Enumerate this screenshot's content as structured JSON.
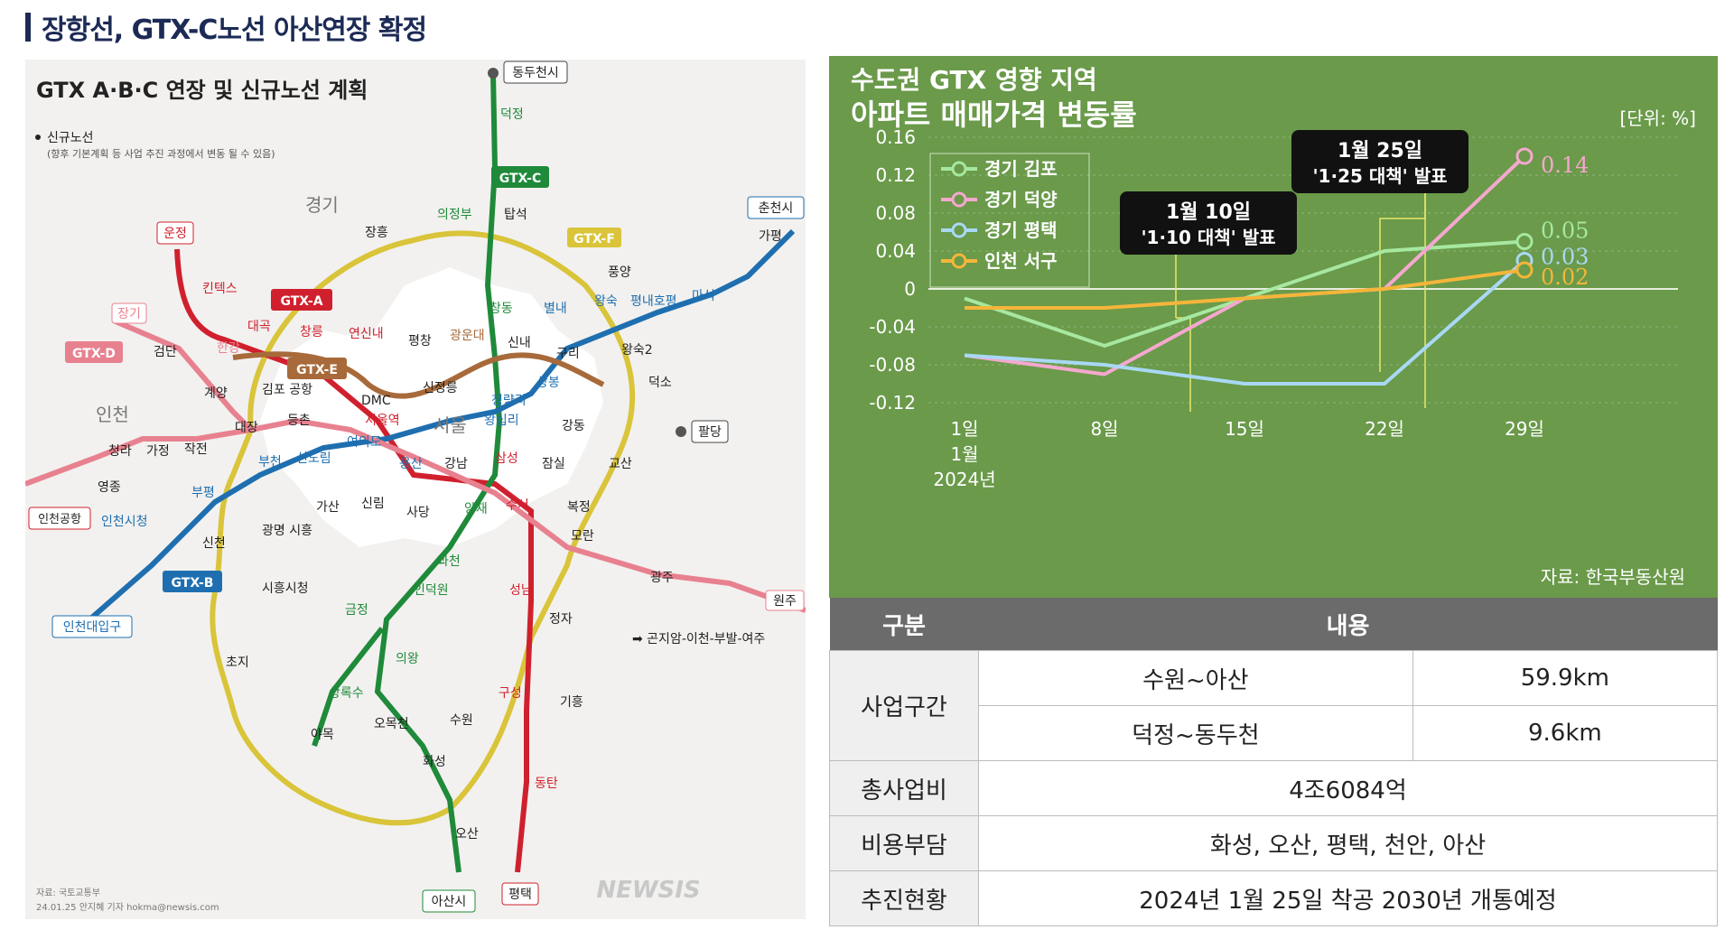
{
  "page_title": "장항선, GTX-C노선 아산연장 확정",
  "map": {
    "title": "GTX A·B·C 연장 및 신규노선 계획",
    "legend_label": "신규노선",
    "legend_note": "(향후 기본계획 등 사업 추진 과정에서 변동 될 수 있음)",
    "regions": [
      "경기",
      "인천",
      "서울"
    ],
    "line_labels": [
      "GTX-A",
      "GTX-B",
      "GTX-C",
      "GTX-D",
      "GTX-E",
      "GTX-F"
    ],
    "stations": {
      "dongducheon": "동두천시",
      "deokjeong": "덕정",
      "uijeongbu": "의정부",
      "tapseok": "탑석",
      "janghung": "장흥",
      "chuncheon": "춘천시",
      "gapyeong": "가평",
      "pungyang": "풍양",
      "unjeong": "운정",
      "kintex": "킨텍스",
      "janggi": "장기",
      "daegok": "대곡",
      "changreung": "창릉",
      "geomdan": "검단",
      "hangang": "한강",
      "gyeyang": "계양",
      "gimpo_airport": "김포\n공항",
      "daejang": "대장",
      "cheongna": "청라",
      "gajeong": "가정",
      "jakjeon": "작전",
      "yeongjong": "영종",
      "incheon_airport": "인천공항",
      "incheon_city_hall": "인천시청",
      "bupyeong": "부평",
      "bucheon": "부천",
      "sindorim": "신도림",
      "yeouido": "여의도",
      "yongsan": "용산",
      "seoul_station": "서울역",
      "deungchon": "등촌",
      "dmc": "DMC",
      "yeonsinnae": "연신내",
      "pyeongchang": "평창",
      "gwangundae": "광운대",
      "sinnae": "신내",
      "byeollae": "별내",
      "wangsuk": "왕숙",
      "pyeongnae": "평내호평",
      "maseok": "마석",
      "changdong": "창동",
      "guri": "구리",
      "wangsuk2": "왕숙2",
      "deokso": "덕소",
      "sangbong": "상봉",
      "cheongnyangni": "청량리",
      "wangsimni": "왕십리",
      "sinjeongneung": "신정릉",
      "gangdong": "강동",
      "palgdang": "팔당",
      "gyosan": "교산",
      "samseong": "삼성",
      "jamsil": "잠실",
      "gangnam": "강남",
      "sadang": "사당",
      "gasan": "가산",
      "sillim": "신림",
      "yangjae": "양재",
      "suseo": "수서",
      "bokjeong": "복정",
      "moran": "모란",
      "gwangmyeong": "광명\n시흥",
      "sincheon": "신천",
      "siheung_city_hall": "시흥시청",
      "incheon_univ": "인천대입구",
      "gwacheon": "과천",
      "indeogwon": "인덕원",
      "geumjeong": "금정",
      "seongnam": "성남",
      "gwangju": "광주",
      "wonju": "원주",
      "jeongja": "정자",
      "extension_note": "➡ 곤지암-이천-부발-여주",
      "choji": "초지",
      "uiwang": "의왕",
      "sangroksu": "상록수",
      "guseong": "구성",
      "giheung": "기흥",
      "omokcheon": "오목천",
      "suwon": "수원",
      "yamok": "야목",
      "hwaseong": "화성",
      "dongtan": "동탄",
      "osan": "오산",
      "asan": "아산시",
      "pyeongtaek": "평택"
    },
    "source": "자료: 국토교통부",
    "credit": "24.01.25 안지혜 기자 hokma@newsis.com",
    "watermark": "NEWSIS"
  },
  "chart_data": {
    "type": "line",
    "title": "수도권 GTX 영향 지역",
    "subtitle": "아파트 매매가격 변동률",
    "unit": "[단위: %]",
    "x": [
      "1일",
      "8일",
      "15일",
      "22일",
      "29일"
    ],
    "x_sub": [
      "1월",
      "2024년"
    ],
    "ylim": [
      -0.12,
      0.16
    ],
    "yticks": [
      "0.16",
      "0.12",
      "0.08",
      "0.04",
      "0",
      "-0.04",
      "-0.08",
      "-0.12"
    ],
    "series": [
      {
        "name": "경기 김포",
        "color": "#a6e8a0",
        "values": [
          -0.01,
          -0.06,
          -0.01,
          0.04,
          0.05
        ],
        "end_label": "0.05"
      },
      {
        "name": "경기 덕양",
        "color": "#f5a8cf",
        "values": [
          -0.07,
          -0.09,
          -0.01,
          0.0,
          0.14
        ],
        "end_label": "0.14"
      },
      {
        "name": "경기 평택",
        "color": "#a9d8f5",
        "values": [
          -0.07,
          -0.08,
          -0.1,
          -0.1,
          0.03
        ],
        "end_label": "0.03"
      },
      {
        "name": "인천 서구",
        "color": "#f5b53a",
        "values": [
          -0.02,
          -0.02,
          -0.01,
          0.0,
          0.02
        ],
        "end_label": "0.02"
      }
    ],
    "annotations": [
      {
        "line1": "1월 10일",
        "line2": "'1·10 대책' 발표"
      },
      {
        "line1": "1월 25일",
        "line2": "'1·25 대책' 발표"
      }
    ],
    "source": "자료: 한국부동산원",
    "colors": {
      "background": "#6a9a4a",
      "text": "#ffffff",
      "callout": "#111111"
    }
  },
  "table": {
    "headers": [
      "구분",
      "내용"
    ],
    "rows": [
      {
        "label": "사업구간",
        "cells": [
          [
            "수원~아산",
            "59.9km"
          ],
          [
            "덕정~동두천",
            "9.6km"
          ]
        ]
      },
      {
        "label": "총사업비",
        "value": "4조6084억"
      },
      {
        "label": "비용부담",
        "value": "화성, 오산, 평택, 천안, 아산"
      },
      {
        "label": "추진현황",
        "value": "2024년 1월 25일 착공 2030년 개통예정"
      }
    ]
  }
}
